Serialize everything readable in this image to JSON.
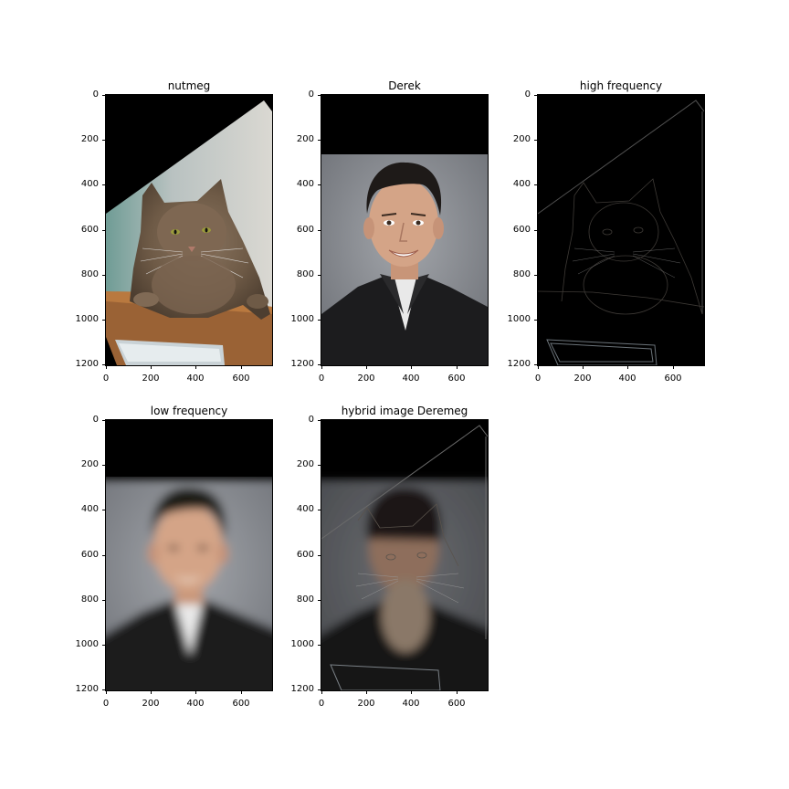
{
  "figure": {
    "panels": [
      {
        "id": "nutmeg",
        "title": "nutmeg",
        "content": "cat photo",
        "yticks": [
          "0",
          "200",
          "400",
          "600",
          "800",
          "1000",
          "1200"
        ],
        "xticks": [
          "0",
          "200",
          "400",
          "600"
        ]
      },
      {
        "id": "derek",
        "title": "Derek",
        "content": "man portrait",
        "yticks": [
          "0",
          "200",
          "400",
          "600",
          "800",
          "1000",
          "1200"
        ],
        "xticks": [
          "0",
          "200",
          "400",
          "600"
        ]
      },
      {
        "id": "high-frequency",
        "title": "high frequency",
        "content": "edge-filtered cat",
        "yticks": [
          "0",
          "200",
          "400",
          "600",
          "800",
          "1000",
          "1200"
        ],
        "xticks": [
          "0",
          "200",
          "400",
          "600"
        ]
      },
      {
        "id": "low-frequency",
        "title": "low frequency",
        "content": "blurred man",
        "yticks": [
          "0",
          "200",
          "400",
          "600",
          "800",
          "1000",
          "1200"
        ],
        "xticks": [
          "0",
          "200",
          "400",
          "600"
        ]
      },
      {
        "id": "hybrid",
        "title": "hybrid image Deremeg",
        "content": "hybrid cat-man",
        "yticks": [
          "0",
          "200",
          "400",
          "600",
          "800",
          "1000",
          "1200"
        ],
        "xticks": [
          "0",
          "200",
          "400",
          "600"
        ]
      }
    ],
    "axis": {
      "x_range": [
        0,
        740
      ],
      "y_range": [
        0,
        1200
      ],
      "y_inverted": true
    }
  }
}
